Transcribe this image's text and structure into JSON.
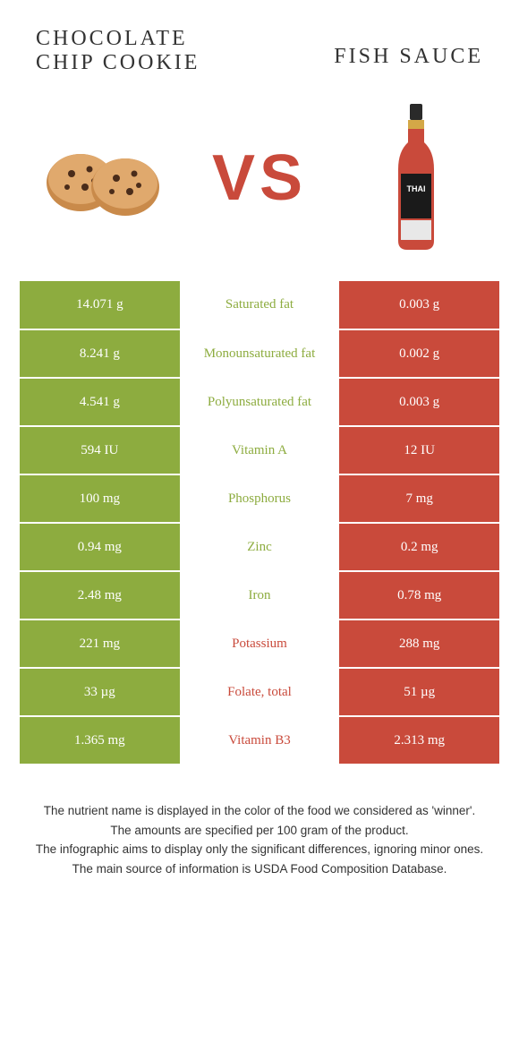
{
  "titles": {
    "left": "Chocolate chip cookie",
    "right": "Fish sauce"
  },
  "vs": "VS",
  "colors": {
    "left": "#8dac3f",
    "right": "#c94a3b",
    "label_left_win": "#8dac3f",
    "label_right_win": "#c94a3b",
    "background": "#ffffff",
    "text": "#333333"
  },
  "rows": [
    {
      "left": "14.071 g",
      "label": "Saturated fat",
      "right": "0.003 g",
      "winner": "left"
    },
    {
      "left": "8.241 g",
      "label": "Monounsaturated fat",
      "right": "0.002 g",
      "winner": "left"
    },
    {
      "left": "4.541 g",
      "label": "Polyunsaturated fat",
      "right": "0.003 g",
      "winner": "left"
    },
    {
      "left": "594 IU",
      "label": "Vitamin A",
      "right": "12 IU",
      "winner": "left"
    },
    {
      "left": "100 mg",
      "label": "Phosphorus",
      "right": "7 mg",
      "winner": "left"
    },
    {
      "left": "0.94 mg",
      "label": "Zinc",
      "right": "0.2 mg",
      "winner": "left"
    },
    {
      "left": "2.48 mg",
      "label": "Iron",
      "right": "0.78 mg",
      "winner": "left"
    },
    {
      "left": "221 mg",
      "label": "Potassium",
      "right": "288 mg",
      "winner": "right"
    },
    {
      "left": "33 µg",
      "label": "Folate, total",
      "right": "51 µg",
      "winner": "right"
    },
    {
      "left": "1.365 mg",
      "label": "Vitamin B3",
      "right": "2.313 mg",
      "winner": "right"
    }
  ],
  "footer_lines": [
    "The nutrient name is displayed in the color of the food we considered as 'winner'.",
    "The amounts are specified per 100 gram of the product.",
    "The infographic aims to display only the significant differences, ignoring minor ones.",
    "The main source of information is USDA Food Composition Database."
  ]
}
